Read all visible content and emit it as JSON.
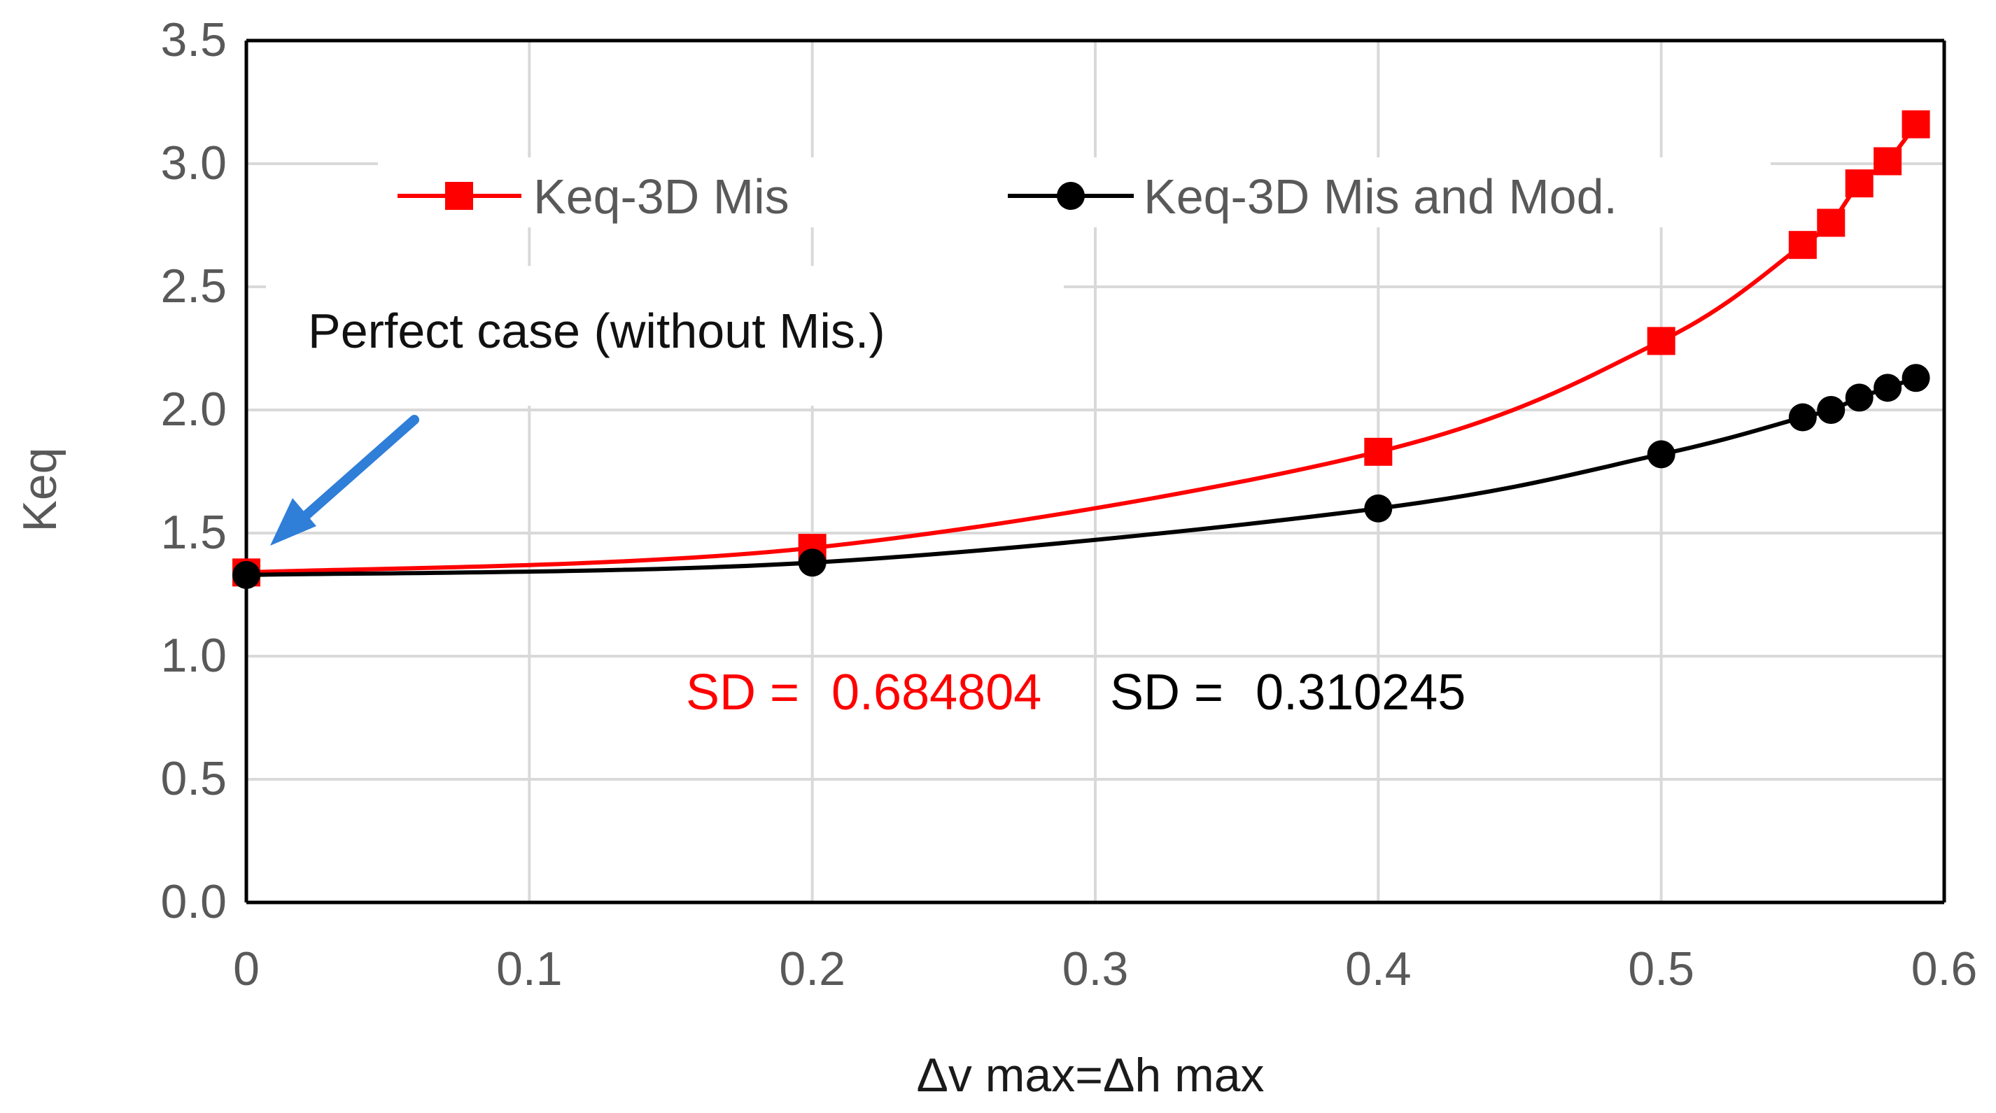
{
  "colors": {
    "series1": "#ff0000",
    "series2": "#000000",
    "grid": "#d9d9d9",
    "axis": "#000000",
    "arrow": "#2f7ed8"
  },
  "chart_data": {
    "type": "line",
    "title": "",
    "xlabel": "Δv max=Δh max",
    "ylabel": "Keq",
    "xlim": [
      0,
      0.6
    ],
    "ylim": [
      0,
      3.5
    ],
    "x_ticks": [
      "0",
      "0.1",
      "0.2",
      "0.3",
      "0.4",
      "0.5",
      "0.6"
    ],
    "y_ticks": [
      "0.0",
      "0.5",
      "1.0",
      "1.5",
      "2.0",
      "2.5",
      "3.0",
      "3.5"
    ],
    "grid": true,
    "legend_position": "top",
    "series": [
      {
        "name": "Keq-3D Mis",
        "marker": "square",
        "color": "#ff0000",
        "x": [
          0,
          0.2,
          0.4,
          0.5,
          0.55,
          0.56,
          0.57,
          0.58,
          0.59
        ],
        "y": [
          1.34,
          1.44,
          1.83,
          2.28,
          2.67,
          2.76,
          2.92,
          3.01,
          3.16
        ]
      },
      {
        "name": "Keq-3D Mis and Mod.",
        "marker": "circle",
        "color": "#000000",
        "x": [
          0,
          0.2,
          0.4,
          0.5,
          0.55,
          0.56,
          0.57,
          0.58,
          0.59
        ],
        "y": [
          1.33,
          1.38,
          1.6,
          1.82,
          1.97,
          2.0,
          2.05,
          2.09,
          2.13
        ]
      }
    ],
    "annotations": {
      "perfect_case": "Perfect case (without Mis.)",
      "sd_red_label": "SD =",
      "sd_red_value": "0.684804",
      "sd_black_label": "SD =",
      "sd_black_value": "0.310245"
    }
  }
}
